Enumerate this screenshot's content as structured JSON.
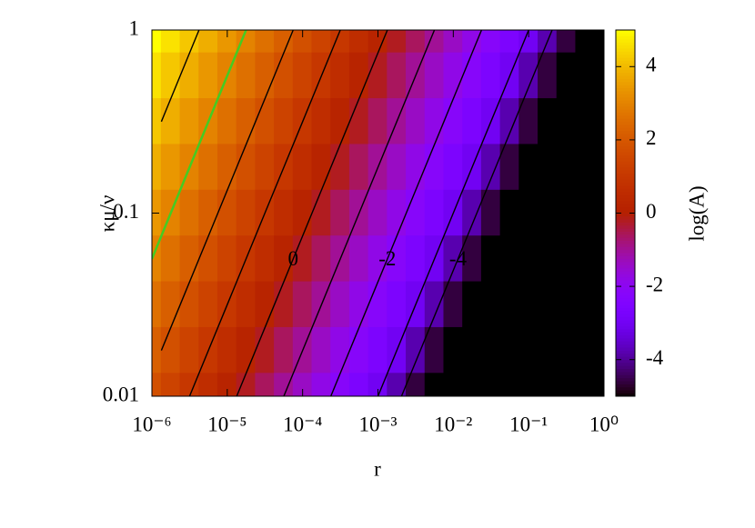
{
  "chart_data": {
    "type": "heatmap",
    "xlabel": "r",
    "ylabel": "κμ/ν",
    "colorbar_label": "log(A)",
    "xscale": "log",
    "yscale": "log",
    "xlim": [
      1e-06,
      1
    ],
    "ylim": [
      0.01,
      1
    ],
    "xticks": [
      {
        "value": 1e-06,
        "label": "10⁻⁶"
      },
      {
        "value": 1e-05,
        "label": "10⁻⁵"
      },
      {
        "value": 0.0001,
        "label": "10⁻⁴"
      },
      {
        "value": 0.001,
        "label": "10⁻³"
      },
      {
        "value": 0.01,
        "label": "10⁻²"
      },
      {
        "value": 0.1,
        "label": "10⁻¹"
      },
      {
        "value": 1,
        "label": "10⁰"
      }
    ],
    "yticks": [
      0.01,
      0.1,
      1
    ],
    "clim": [
      -5,
      5
    ],
    "cticks": [
      -4,
      -2,
      0,
      2,
      4
    ],
    "x": [
      1e-06,
      1.778e-06,
      3.162e-06,
      5.623e-06,
      1e-05,
      1.778e-05,
      3.162e-05,
      5.623e-05,
      0.0001,
      0.0001778,
      0.0003162,
      0.0005623,
      0.001,
      0.001778,
      0.003162,
      0.005623,
      0.01,
      0.01778,
      0.03162,
      0.05623,
      0.1,
      0.1778,
      0.3162,
      0.5623,
      1
    ],
    "y": [
      1,
      0.5623,
      0.3162,
      0.1778,
      0.1,
      0.05623,
      0.03162,
      0.01778,
      0.01
    ],
    "z": [
      [
        5.0,
        4.6,
        4.2,
        3.8,
        3.4,
        3.0,
        2.6,
        2.2,
        1.8,
        1.4,
        1.0,
        0.6,
        0.2,
        -0.2,
        -0.6,
        -1.0,
        -1.4,
        -1.8,
        -2.2,
        -2.6,
        -3.0,
        -3.8,
        -4.6,
        -5.4,
        -6.2
      ],
      [
        4.6,
        4.2,
        3.8,
        3.4,
        3.0,
        2.6,
        2.2,
        1.8,
        1.4,
        1.0,
        0.6,
        0.2,
        -0.2,
        -0.6,
        -1.0,
        -1.4,
        -1.8,
        -2.2,
        -2.6,
        -3.0,
        -3.8,
        -4.6,
        -5.4,
        -6.2,
        -7.0
      ],
      [
        4.2,
        3.8,
        3.4,
        3.0,
        2.6,
        2.2,
        1.8,
        1.4,
        1.0,
        0.6,
        0.2,
        -0.2,
        -0.6,
        -1.0,
        -1.4,
        -1.8,
        -2.2,
        -2.6,
        -3.0,
        -3.8,
        -4.6,
        -5.4,
        -6.2,
        -7.0,
        -7.8
      ],
      [
        3.8,
        3.4,
        3.0,
        2.6,
        2.2,
        1.8,
        1.4,
        1.0,
        0.6,
        0.2,
        -0.2,
        -0.6,
        -1.0,
        -1.4,
        -1.8,
        -2.2,
        -2.6,
        -3.0,
        -3.8,
        -4.6,
        -5.4,
        -6.2,
        -7.0,
        -7.8,
        -8.6
      ],
      [
        3.4,
        3.0,
        2.6,
        2.2,
        1.8,
        1.4,
        1.0,
        0.6,
        0.2,
        -0.2,
        -0.6,
        -1.0,
        -1.4,
        -1.8,
        -2.2,
        -2.6,
        -3.0,
        -3.8,
        -4.6,
        -5.4,
        -6.2,
        -7.0,
        -7.8,
        -8.6,
        -9.4
      ],
      [
        3.0,
        2.6,
        2.2,
        1.8,
        1.4,
        1.0,
        0.6,
        0.2,
        -0.2,
        -0.6,
        -1.0,
        -1.4,
        -1.8,
        -2.2,
        -2.6,
        -3.0,
        -3.8,
        -4.6,
        -5.4,
        -6.2,
        -7.0,
        -7.8,
        -8.6,
        -9.4,
        -10.2
      ],
      [
        2.6,
        2.2,
        1.8,
        1.4,
        1.0,
        0.6,
        0.2,
        -0.2,
        -0.6,
        -1.0,
        -1.4,
        -1.8,
        -2.2,
        -2.6,
        -3.0,
        -3.8,
        -4.6,
        -5.4,
        -6.2,
        -7.0,
        -7.8,
        -8.6,
        -9.4,
        -10.2,
        -11.0
      ],
      [
        2.2,
        1.8,
        1.4,
        1.0,
        0.6,
        0.2,
        -0.2,
        -0.6,
        -1.0,
        -1.4,
        -1.8,
        -2.2,
        -2.6,
        -3.0,
        -3.8,
        -4.6,
        -5.4,
        -6.2,
        -7.0,
        -7.8,
        -8.6,
        -9.4,
        -10.2,
        -11.0,
        -11.8
      ],
      [
        1.8,
        1.4,
        1.0,
        0.6,
        0.2,
        -0.2,
        -0.6,
        -1.0,
        -1.4,
        -1.8,
        -2.2,
        -2.6,
        -3.0,
        -3.8,
        -4.6,
        -5.4,
        -6.2,
        -7.0,
        -7.8,
        -8.6,
        -9.4,
        -10.2,
        -11.0,
        -11.8,
        -12.6
      ]
    ],
    "contour_levels": [
      -4,
      -3,
      -2,
      -1,
      0,
      1,
      2,
      4
    ],
    "contour_color": "#000000",
    "highlight_level": 3,
    "highlight_color": "#44cc22",
    "contour_labels": [
      0,
      -2,
      -4
    ]
  }
}
